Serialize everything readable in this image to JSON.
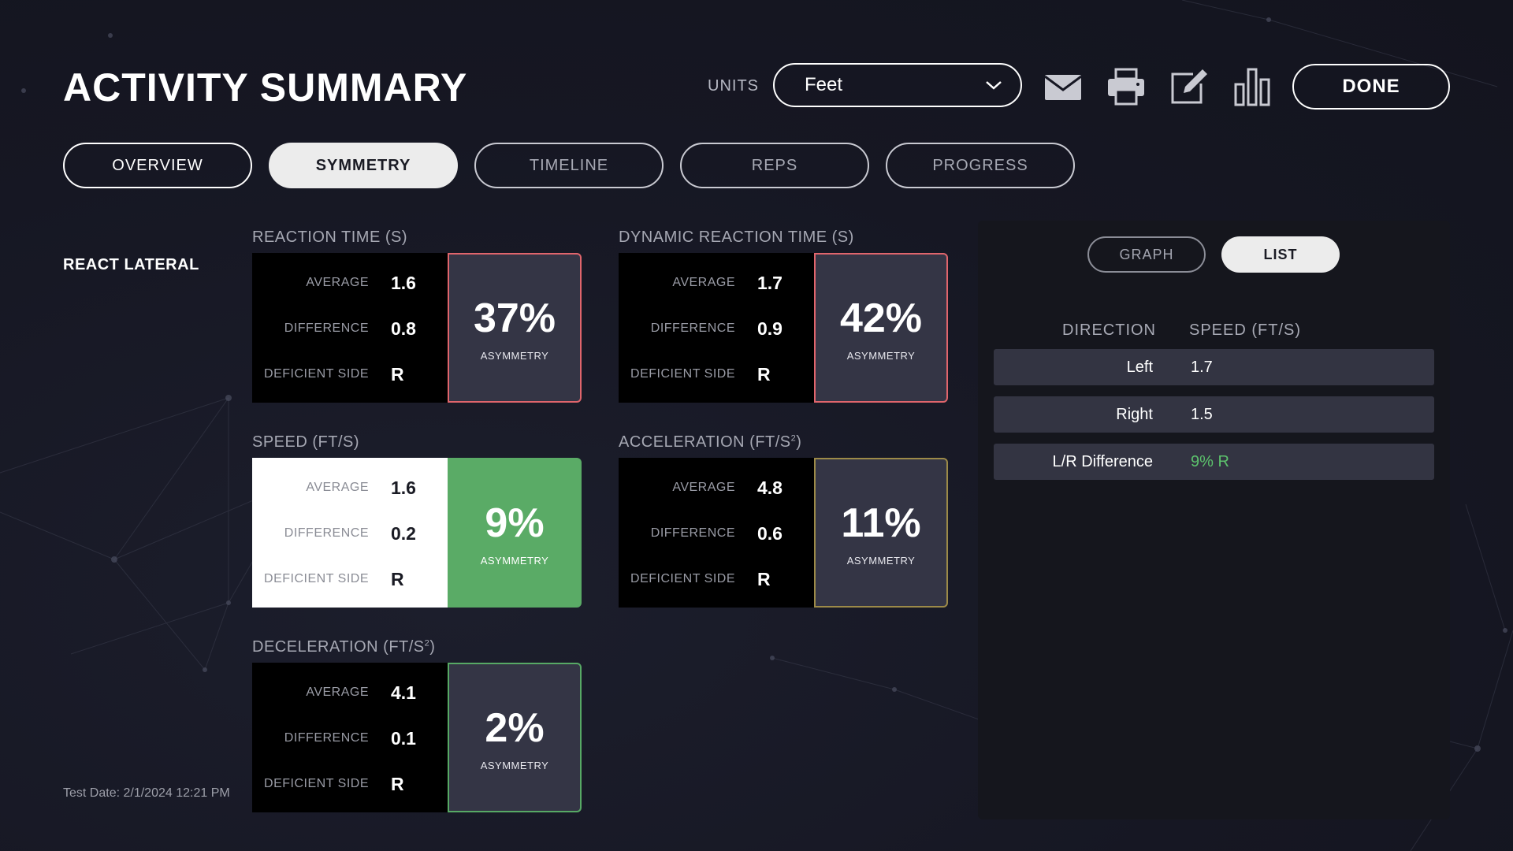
{
  "header": {
    "title": "ACTIVITY SUMMARY",
    "units_label": "UNITS",
    "units_value": "Feet",
    "done_label": "DONE",
    "icons": [
      "mail-icon",
      "printer-icon",
      "edit-icon",
      "bar-chart-icon"
    ]
  },
  "tabs": [
    {
      "label": "OVERVIEW",
      "active": false
    },
    {
      "label": "SYMMETRY",
      "active": true
    },
    {
      "label": "TIMELINE",
      "active": false
    },
    {
      "label": "REPS",
      "active": false
    },
    {
      "label": "PROGRESS",
      "active": false
    }
  ],
  "activity": {
    "name": "REACT LATERAL",
    "test_date": "Test Date: 2/1/2024 12:21 PM"
  },
  "row_labels": {
    "average": "AVERAGE",
    "difference": "DIFFERENCE",
    "deficient_side": "DEFICIENT SIDE",
    "asymmetry": "ASYMMETRY"
  },
  "metrics": {
    "reaction_time": {
      "title": "REACTION TIME (S)",
      "average": "1.6",
      "difference": "0.8",
      "deficient_side": "R",
      "asymmetry": "37%",
      "status_color": "#e0656c"
    },
    "dynamic_reaction_time": {
      "title": "DYNAMIC REACTION TIME (S)",
      "average": "1.7",
      "difference": "0.9",
      "deficient_side": "R",
      "asymmetry": "42%",
      "status_color": "#e0656c"
    },
    "speed": {
      "title": "SPEED (FT/S)",
      "average": "1.6",
      "difference": "0.2",
      "deficient_side": "R",
      "asymmetry": "9%",
      "status_color": "#5aab66"
    },
    "acceleration": {
      "title_main": "ACCELERATION (FT/S",
      "title_sup": "2",
      "title_end": ")",
      "average": "4.8",
      "difference": "0.6",
      "deficient_side": "R",
      "asymmetry": "11%",
      "status_color": "#9c8a48"
    },
    "deceleration": {
      "title_main": "DECELERATION (FT/S",
      "title_sup": "2",
      "title_end": ")",
      "average": "4.1",
      "difference": "0.1",
      "deficient_side": "R",
      "asymmetry": "2%",
      "status_color": "#57a965"
    }
  },
  "panel": {
    "toggle": {
      "graph": "GRAPH",
      "list": "LIST",
      "selected": "LIST"
    },
    "columns": {
      "direction": "DIRECTION",
      "speed": "SPEED (FT/S)"
    },
    "rows": [
      {
        "direction": "Left",
        "speed": "1.7"
      },
      {
        "direction": "Right",
        "speed": "1.5"
      },
      {
        "direction": "L/R Difference",
        "speed": "9% R",
        "highlight_color": "#5cc26c"
      }
    ]
  }
}
